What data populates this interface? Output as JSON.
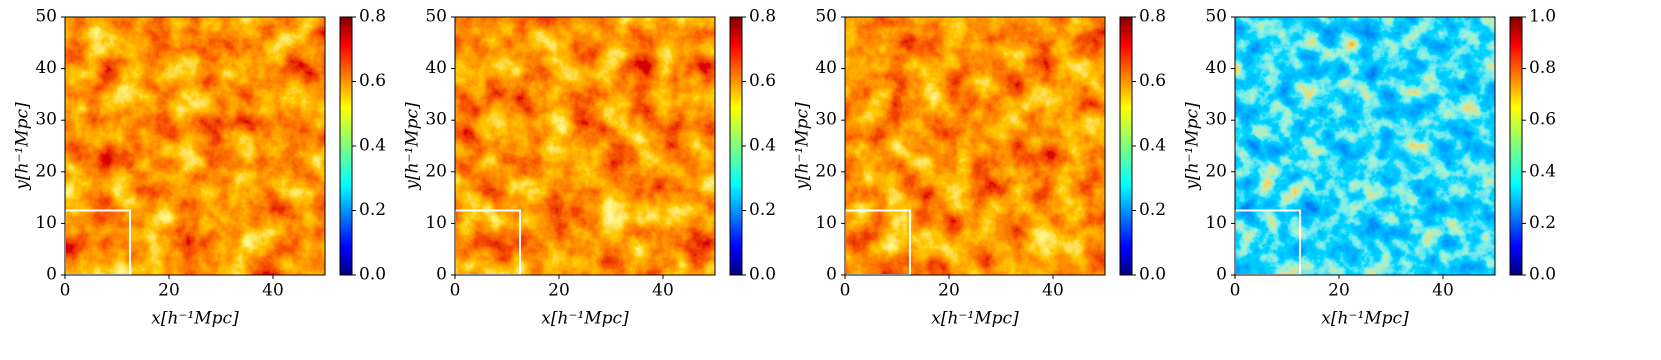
{
  "chart_data": [
    {
      "type": "heatmap",
      "xlabel": "x[h⁻¹Mpc]",
      "ylabel": "y[h⁻¹Mpc]",
      "xlim": [
        0,
        50
      ],
      "ylim": [
        0,
        50
      ],
      "xticks": [
        0,
        20,
        40
      ],
      "yticks": [
        0,
        10,
        20,
        30,
        40,
        50
      ],
      "cmap": "jet",
      "colorbar": {
        "lim": [
          0,
          0.8
        ],
        "ticks": [
          {
            "value": 0,
            "label": "0.0"
          },
          0.2,
          0.4,
          0.6,
          0.8
        ]
      },
      "box": {
        "x": [
          0,
          12.5
        ],
        "y": [
          0,
          12.5
        ],
        "color": "#ffffff"
      }
    },
    {
      "type": "heatmap",
      "xlabel": "x[h⁻¹Mpc]",
      "ylabel": "y[h⁻¹Mpc]",
      "xlim": [
        0,
        50
      ],
      "ylim": [
        0,
        50
      ],
      "xticks": [
        0,
        20,
        40
      ],
      "yticks": [
        0,
        10,
        20,
        30,
        40,
        50
      ],
      "cmap": "jet",
      "colorbar": {
        "lim": [
          0,
          0.8
        ],
        "ticks": [
          {
            "value": 0,
            "label": "0.0"
          },
          0.2,
          0.4,
          0.6,
          0.8
        ]
      },
      "box": {
        "x": [
          0,
          12.5
        ],
        "y": [
          0,
          12.5
        ],
        "color": "#ffffff"
      }
    },
    {
      "type": "heatmap",
      "xlabel": "x[h⁻¹Mpc]",
      "ylabel": "y[h⁻¹Mpc]",
      "xlim": [
        0,
        50
      ],
      "ylim": [
        0,
        50
      ],
      "xticks": [
        0,
        20,
        40
      ],
      "yticks": [
        0,
        10,
        20,
        30,
        40,
        50
      ],
      "cmap": "jet",
      "colorbar": {
        "lim": [
          0,
          0.8
        ],
        "ticks": [
          {
            "value": 0,
            "label": "0.0"
          },
          0.2,
          0.4,
          0.6,
          0.8
        ]
      },
      "box": {
        "x": [
          0,
          12.5
        ],
        "y": [
          0,
          12.5
        ],
        "color": "#ffffff"
      }
    },
    {
      "type": "heatmap",
      "xlabel": "x[h⁻¹Mpc]",
      "ylabel": "y[h⁻¹Mpc]",
      "xlim": [
        0,
        50
      ],
      "ylim": [
        0,
        50
      ],
      "xticks": [
        0,
        20,
        40
      ],
      "yticks": [
        0,
        10,
        20,
        30,
        40,
        50
      ],
      "cmap": "jet",
      "colorbar": {
        "lim": [
          0,
          1
        ],
        "ticks": [
          {
            "value": 0,
            "label": "0.0"
          },
          0.2,
          0.4,
          0.6,
          0.8,
          {
            "value": 1,
            "label": "1.0"
          }
        ]
      },
      "box": {
        "x": [
          0,
          12.5
        ],
        "y": [
          0,
          12.5
        ],
        "color": "#ffffff"
      }
    }
  ]
}
